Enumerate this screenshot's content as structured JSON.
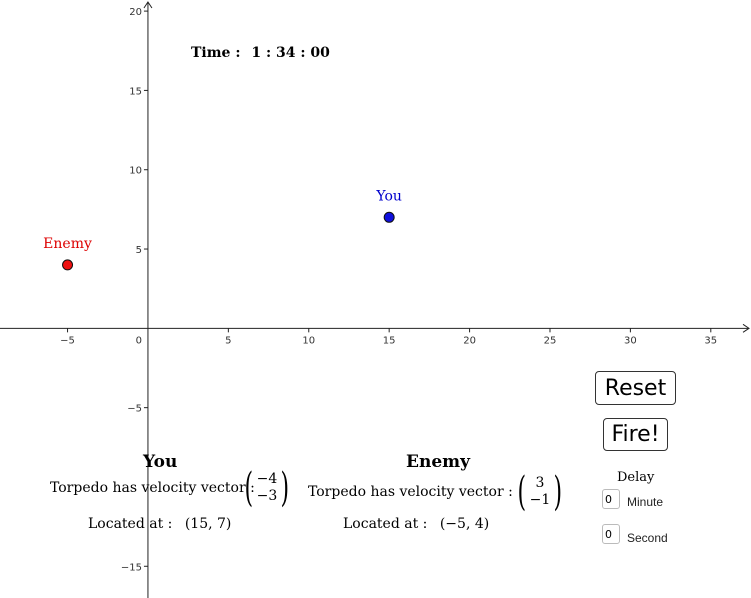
{
  "time": {
    "label": "Time :",
    "value": "1 : 34 : 00"
  },
  "axes": {
    "xmin": -9.2,
    "xmax": 37.5,
    "ymin": -17,
    "ymax": 20.7,
    "x_ticks": [
      -5,
      5,
      10,
      15,
      20,
      25,
      30,
      35
    ],
    "y_ticks": [
      -15,
      -5,
      5,
      10,
      15,
      20
    ],
    "origin_label": "0"
  },
  "points": [
    {
      "name": "You",
      "x": 15,
      "y": 7,
      "color": "#1010dd",
      "label_color": "#0000cc"
    },
    {
      "name": "Enemy",
      "x": -5,
      "y": 4,
      "color": "#ee1111",
      "label_color": "#dd0000"
    }
  ],
  "you_panel": {
    "title": "You",
    "velocity_label": "Torpedo has velocity vector :",
    "velocity": [
      "−4",
      "−3"
    ],
    "location_label": "Located at :",
    "location": "(15, 7)"
  },
  "enemy_panel": {
    "title": "Enemy",
    "velocity_label": "Torpedo has velocity vector :",
    "velocity": [
      "3",
      "−1"
    ],
    "location_label": "Located at :",
    "location": "(−5, 4)"
  },
  "buttons": {
    "reset": "Reset",
    "fire": "Fire!"
  },
  "delay": {
    "label": "Delay",
    "minute_value": "0",
    "minute_label": "Minute",
    "second_value": "0",
    "second_label": "Second"
  }
}
